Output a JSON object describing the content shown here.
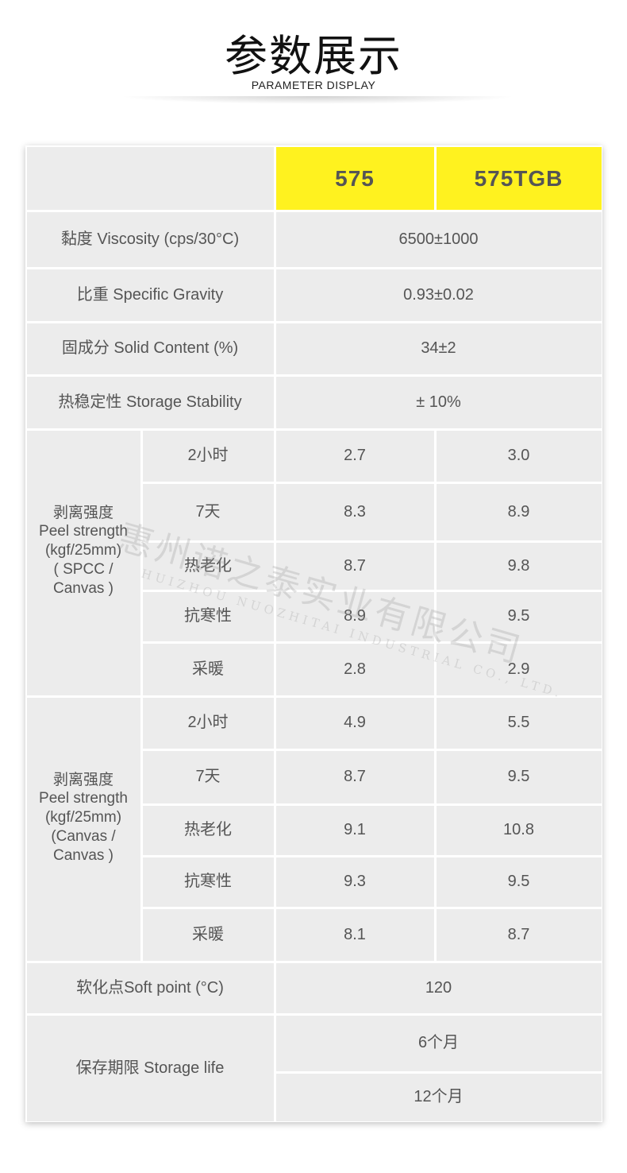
{
  "header": {
    "title": "参数展示",
    "subtitle": "PARAMETER DISPLAY"
  },
  "table": {
    "columns": [
      "",
      "575",
      "575TGB"
    ],
    "simple_rows": [
      {
        "label": "黏度 Viscosity (cps/30°C)",
        "value": "6500±1000"
      },
      {
        "label": "比重 Specific Gravity",
        "value": "0.93±0.02"
      },
      {
        "label": "固成分 Solid Content (%)",
        "value": "34±2"
      },
      {
        "label": "热稳定性 Storage Stability",
        "value": "± 10%"
      }
    ],
    "groups": [
      {
        "label": "剥离强度\nPeel strength\n(kgf/25mm)\n( SPCC /\nCanvas )",
        "rows": [
          {
            "condition": "2小时",
            "v575": "2.7",
            "v575tgb": "3.0"
          },
          {
            "condition": "7天",
            "v575": "8.3",
            "v575tgb": "8.9"
          },
          {
            "condition": "热老化",
            "v575": "8.7",
            "v575tgb": "9.8"
          },
          {
            "condition": "抗寒性",
            "v575": "8.9",
            "v575tgb": "9.5"
          },
          {
            "condition": "采暖",
            "v575": "2.8",
            "v575tgb": "2.9"
          }
        ]
      },
      {
        "label": "剥离强度\nPeel strength\n(kgf/25mm)\n(Canvas /\nCanvas )",
        "rows": [
          {
            "condition": "2小时",
            "v575": "4.9",
            "v575tgb": "5.5"
          },
          {
            "condition": "7天",
            "v575": "8.7",
            "v575tgb": "9.5"
          },
          {
            "condition": "热老化",
            "v575": "9.1",
            "v575tgb": "10.8"
          },
          {
            "condition": "抗寒性",
            "v575": "9.3",
            "v575tgb": "9.5"
          },
          {
            "condition": "采暖",
            "v575": "8.1",
            "v575tgb": "8.7"
          }
        ]
      }
    ],
    "soft_point": {
      "label": "软化点Soft point (°C)",
      "value": "120"
    },
    "storage_life": {
      "label": "保存期限 Storage life",
      "values": [
        "6个月",
        "12个月"
      ]
    }
  },
  "watermark": {
    "cn": "惠州诺之泰实业有限公司",
    "en": "HUIZHOU NUOZHITAI INDUSTRIAL CO., LTD."
  },
  "colors": {
    "header_yellow": "#fff21f",
    "cell_bg": "#ececec",
    "text": "#555555"
  }
}
